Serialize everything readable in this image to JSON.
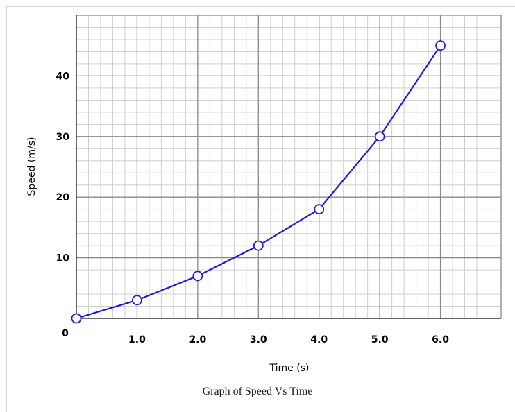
{
  "caption": "Graph of Speed Vs Time",
  "chart_data": {
    "type": "line",
    "title": "",
    "xlabel": "Time (s)",
    "ylabel": "Speed (m/s)",
    "x": [
      0,
      1,
      2,
      3,
      4,
      5,
      6
    ],
    "series": [
      {
        "values": [
          0,
          3,
          7,
          12,
          18,
          30,
          45
        ]
      }
    ],
    "xlim": [
      0,
      7
    ],
    "ylim": [
      0,
      50
    ],
    "x_tick_values": [
      0,
      1,
      2,
      3,
      4,
      5,
      6
    ],
    "x_tick_labels": [
      "0",
      "1.0",
      "2.0",
      "3.0",
      "4.0",
      "5.0",
      "6.0"
    ],
    "y_tick_values": [
      10,
      20,
      30,
      40
    ],
    "y_tick_labels": [
      "10",
      "20",
      "30",
      "40"
    ],
    "grid": true,
    "minor_grid": true,
    "legend": "none",
    "colors": {
      "line": "#1a1ae6",
      "marker_fill": "#ffffff",
      "major_grid": "#888888",
      "minor_grid": "#cfcfcf"
    }
  }
}
